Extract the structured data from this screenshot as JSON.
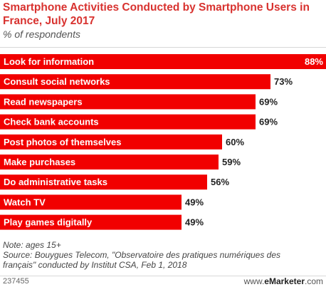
{
  "chart_data": {
    "type": "bar",
    "orientation": "horizontal",
    "title": "Smartphone Activities Conducted by Smartphone Users in France, July 2017",
    "subtitle": "% of respondents",
    "categories": [
      "Look for information",
      "Consult social networks",
      "Read newspapers",
      "Check bank accounts",
      "Post photos of themselves",
      "Make purchases",
      "Do administrative tasks",
      "Watch TV",
      "Play games digitally"
    ],
    "values": [
      88,
      73,
      69,
      69,
      60,
      59,
      56,
      49,
      49
    ],
    "value_labels": [
      "88%",
      "73%",
      "69%",
      "69%",
      "60%",
      "59%",
      "56%",
      "49%",
      "49%"
    ],
    "xlim": [
      0,
      88
    ],
    "grid": false,
    "bar_color": "#f10000"
  },
  "notes": {
    "line1": "Note: ages 15+",
    "line2": "Source: Bouygues Telecom, \"Observatoire des pratiques numériques des",
    "line3": "français\" conducted by Institut CSA, Feb 1, 2018"
  },
  "footer": {
    "chart_id": "237455",
    "brand_prefix": "www.",
    "brand_strong": "eMarketer",
    "brand_suffix": ".com"
  }
}
